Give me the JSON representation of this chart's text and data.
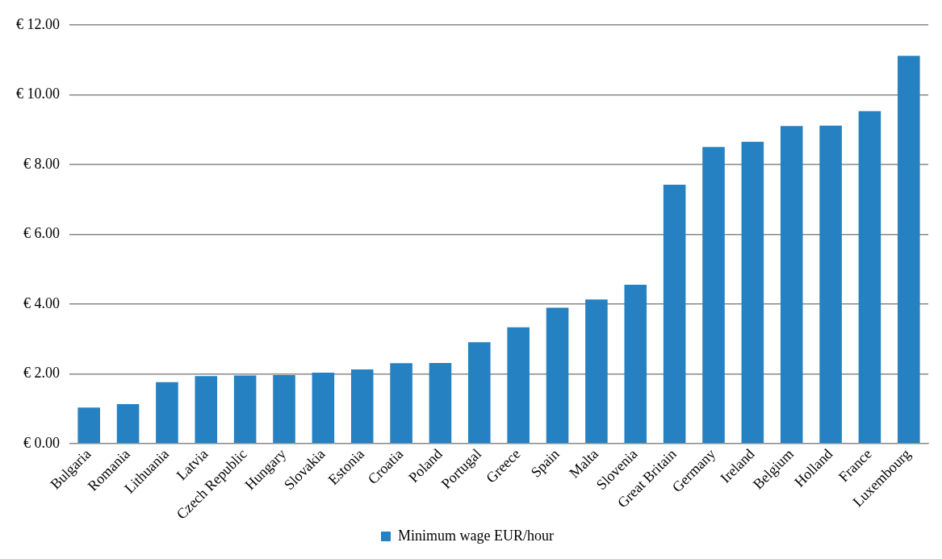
{
  "chart_data": {
    "type": "bar",
    "categories": [
      "Bulgaria",
      "Romania",
      "Lithuania",
      "Latvia",
      "Czech Republic",
      "Hungary",
      "Slovakia",
      "Estonia",
      "Croatia",
      "Poland",
      "Portugal",
      "Greece",
      "Spain",
      "Malta",
      "Slovenia",
      "Great Britain",
      "Germany",
      "Ireland",
      "Belgium",
      "Holland",
      "France",
      "Luxembourg"
    ],
    "series": [
      {
        "name": "Minimum wage EUR/hour",
        "color": "#2581c1",
        "values": [
          1.03,
          1.13,
          1.76,
          1.93,
          1.95,
          1.96,
          2.03,
          2.12,
          2.3,
          2.31,
          2.9,
          3.33,
          3.89,
          4.13,
          4.55,
          7.42,
          8.5,
          8.65,
          9.1,
          9.11,
          9.53,
          11.11
        ]
      }
    ],
    "ylim": [
      0,
      12
    ],
    "yticks": [
      {
        "value": 0,
        "label": "€ 0.00"
      },
      {
        "value": 2,
        "label": "€ 2.00"
      },
      {
        "value": 4,
        "label": "€ 4.00"
      },
      {
        "value": 6,
        "label": "€ 6.00"
      },
      {
        "value": 8,
        "label": "€ 8.00"
      },
      {
        "value": 10,
        "label": "€ 10.00"
      },
      {
        "value": 12,
        "label": "€ 12.00"
      }
    ],
    "grid": "y",
    "legend": "bottom"
  }
}
